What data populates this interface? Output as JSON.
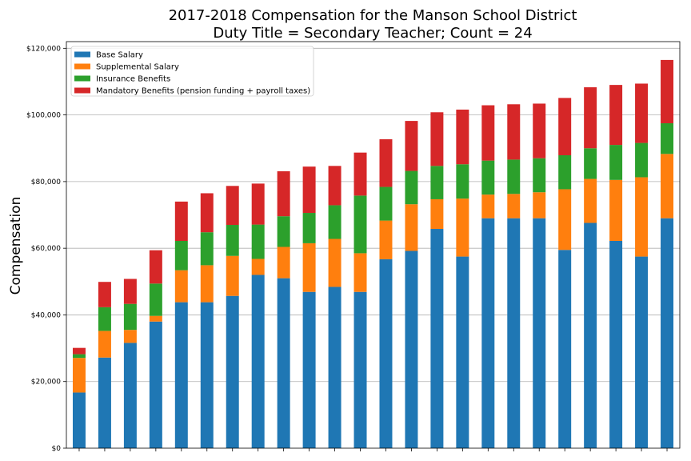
{
  "chart_data": {
    "type": "bar",
    "stacked": true,
    "title_line1": "2017-2018 Compensation for the Manson School District",
    "title_line2": "Duty Title = Secondary Teacher; Count = 24",
    "xlabel": "",
    "ylabel": "Compensation",
    "ylim": [
      0,
      122000
    ],
    "yticks": [
      0,
      20000,
      40000,
      60000,
      80000,
      100000,
      120000
    ],
    "ytick_labels": [
      "$0",
      "$20,000",
      "$40,000",
      "$60,000",
      "$80,000",
      "$100,000",
      "$120,000"
    ],
    "grid": "horizontal",
    "legend_position": "top-left",
    "series": [
      {
        "name": "Base Salary",
        "color": "#1f77b4",
        "values": [
          16700,
          27200,
          31600,
          38000,
          43800,
          43800,
          45700,
          52000,
          51000,
          46900,
          48400,
          46900,
          56700,
          59200,
          65800,
          57500,
          69000,
          69000,
          69000,
          59500,
          67600,
          62200,
          57500,
          69000
        ]
      },
      {
        "name": "Supplemental Salary",
        "color": "#ff7f0e",
        "values": [
          10400,
          8000,
          3900,
          1700,
          9600,
          11100,
          12000,
          4800,
          9400,
          14600,
          14400,
          11600,
          11600,
          14000,
          8900,
          17400,
          7100,
          7300,
          7800,
          18200,
          13200,
          18300,
          23800,
          19300
        ]
      },
      {
        "name": "Insurance Benefits",
        "color": "#2ca02c",
        "values": [
          1100,
          7100,
          7800,
          9700,
          8800,
          9900,
          9300,
          10300,
          9200,
          9100,
          10100,
          17300,
          10100,
          10000,
          10000,
          10300,
          10200,
          10300,
          10200,
          10200,
          9200,
          10500,
          10300,
          9200
        ]
      },
      {
        "name": "Mandatory Benefits (pension funding + payroll taxes)",
        "color": "#d62728",
        "values": [
          1900,
          7600,
          7500,
          10000,
          11800,
          11700,
          11700,
          12300,
          13500,
          13900,
          11800,
          12900,
          14300,
          15000,
          16100,
          16400,
          16600,
          16600,
          16400,
          17200,
          18300,
          18000,
          17800,
          19000
        ]
      }
    ]
  }
}
